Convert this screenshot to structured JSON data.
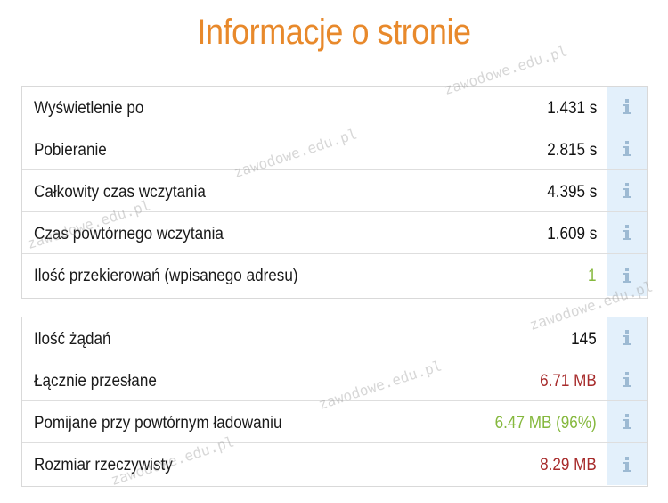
{
  "title": "Informacje o stronie",
  "watermark_text": "zawodowe.edu.pl",
  "colors": {
    "title": "#e8892b",
    "value_default": "#111111",
    "value_red": "#a72b2b",
    "value_green": "#85b83d",
    "info_bg": "#e3f0fb",
    "info_icon": "#9dbad3"
  },
  "panel1": {
    "rows": [
      {
        "label": "Wyświetlenie po",
        "value": "1.431 s",
        "tone": "default"
      },
      {
        "label": "Pobieranie",
        "value": "2.815 s",
        "tone": "default"
      },
      {
        "label": "Całkowity czas wczytania",
        "value": "4.395 s",
        "tone": "default"
      },
      {
        "label": "Czas powtórnego wczytania",
        "value": "1.609 s",
        "tone": "default"
      },
      {
        "label": "Ilość przekierowań (wpisanego adresu)",
        "value": "1",
        "tone": "green"
      }
    ]
  },
  "panel2": {
    "rows": [
      {
        "label": "Ilość żądań",
        "value": "145",
        "tone": "default"
      },
      {
        "label": "Łącznie przesłane",
        "value": "6.71 MB",
        "tone": "red"
      },
      {
        "label": "Pomijane przy powtórnym ładowaniu",
        "value": "6.47 MB (96%)",
        "tone": "green"
      },
      {
        "label": "Rozmiar rzeczywisty",
        "value": "8.29 MB",
        "tone": "red"
      }
    ]
  },
  "info_icon": "info-icon"
}
